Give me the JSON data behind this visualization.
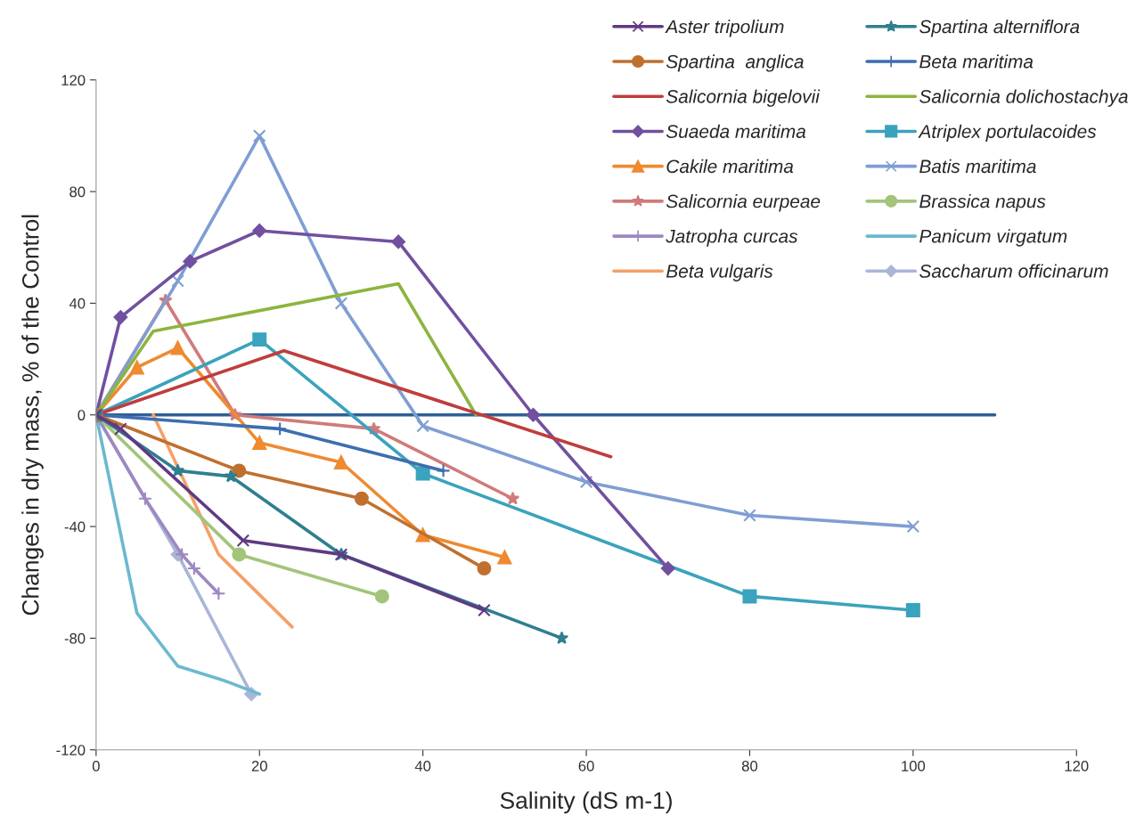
{
  "chart_data": {
    "type": "line",
    "xlabel": "Salinity (dS m-1)",
    "ylabel": "Changes in dry mass, % of the Control",
    "xlim": [
      0,
      120
    ],
    "xticks": [
      0,
      20,
      40,
      60,
      80,
      100,
      120
    ],
    "ylim": [
      -120,
      120
    ],
    "yticks": [
      -120,
      -80,
      -40,
      0,
      40,
      80,
      120
    ],
    "grid": false,
    "legend": "top right",
    "series": [
      {
        "name": "Aster tripolium",
        "color": "#5f3a82",
        "marker": "cross",
        "x": [
          0,
          3,
          18,
          30,
          47.5
        ],
        "values": [
          0,
          -5,
          -45,
          -50,
          -70
        ]
      },
      {
        "name": "Spartina alterniflora",
        "color": "#2e7f8f",
        "marker": "star",
        "x": [
          0,
          10,
          16.5,
          30,
          57
        ],
        "values": [
          0,
          -20,
          -22,
          -50,
          -80
        ]
      },
      {
        "name": "Spartina  anglica",
        "color": "#c0702e",
        "marker": "circle",
        "x": [
          0,
          17.5,
          32.5,
          47.5
        ],
        "values": [
          0,
          -20,
          -30,
          -55
        ]
      },
      {
        "name": "Beta maritima",
        "color": "#3d6eb0",
        "marker": "plus",
        "x": [
          0,
          22.5,
          42.5
        ],
        "values": [
          0,
          -5,
          -20
        ]
      },
      {
        "name": "Salicornia bigelovii",
        "color": "#bf3d3d",
        "marker": "none",
        "x": [
          0,
          23,
          63
        ],
        "values": [
          0,
          23,
          -15
        ]
      },
      {
        "name": "Salicornia dolichostachya",
        "color": "#8db43e",
        "marker": "none",
        "x": [
          0,
          7,
          37,
          46.5
        ],
        "values": [
          0,
          30,
          47,
          0
        ]
      },
      {
        "name": "Suaeda maritima",
        "color": "#7150a0",
        "marker": "diamond",
        "x": [
          0,
          3,
          11.5,
          20,
          37,
          53.5,
          70
        ],
        "values": [
          0,
          35,
          55,
          66,
          62,
          0,
          -55
        ]
      },
      {
        "name": "Atriplex portulacoides",
        "color": "#3aa3bd",
        "marker": "square",
        "x": [
          0,
          20,
          40,
          80,
          100
        ],
        "values": [
          0,
          27,
          -21,
          -65,
          -70
        ]
      },
      {
        "name": "Cakile maritima",
        "color": "#ef8a30",
        "marker": "triangle",
        "x": [
          0,
          5,
          10,
          20,
          30,
          40,
          50
        ],
        "values": [
          0,
          17,
          24,
          -10,
          -17,
          -43,
          -51
        ]
      },
      {
        "name": "Batis maritima",
        "color": "#7f9ed3",
        "marker": "cross",
        "x": [
          0,
          10,
          20,
          30,
          40,
          60,
          80,
          100
        ],
        "values": [
          0,
          48,
          100,
          40,
          -4,
          -24,
          -36,
          -40
        ]
      },
      {
        "name": "Salicornia eurpeae",
        "color": "#d17a7a",
        "marker": "star",
        "x": [
          0,
          8.5,
          17,
          34,
          51
        ],
        "values": [
          0,
          41,
          0,
          -5,
          -30
        ]
      },
      {
        "name": "Brassica napus",
        "color": "#a3c47a",
        "marker": "circle",
        "x": [
          0,
          17.5,
          35
        ],
        "values": [
          0,
          -50,
          -65
        ]
      },
      {
        "name": "Jatropha curcas",
        "color": "#9e88c0",
        "marker": "plus",
        "x": [
          0,
          6,
          10.5,
          12,
          15
        ],
        "values": [
          0,
          -30,
          -50,
          -55,
          -64
        ]
      },
      {
        "name": "Panicum virgatum",
        "color": "#6cb8d0",
        "marker": "none",
        "x": [
          0,
          5,
          10,
          15.5,
          20
        ],
        "values": [
          0,
          -71,
          -90,
          -95,
          -100
        ]
      },
      {
        "name": "Beta vulgaris",
        "color": "#f5a06a",
        "marker": "none",
        "x": [
          7,
          15,
          24
        ],
        "values": [
          0,
          -50,
          -76
        ]
      },
      {
        "name": "Saccharum officinarum",
        "color": "#a9b6d8",
        "marker": "diamond",
        "x": [
          0,
          10,
          19
        ],
        "values": [
          0,
          -50,
          -100
        ]
      },
      {
        "color": "#2f5f96",
        "marker": "none",
        "x": [
          0,
          110
        ],
        "values": [
          0,
          0
        ]
      }
    ]
  }
}
